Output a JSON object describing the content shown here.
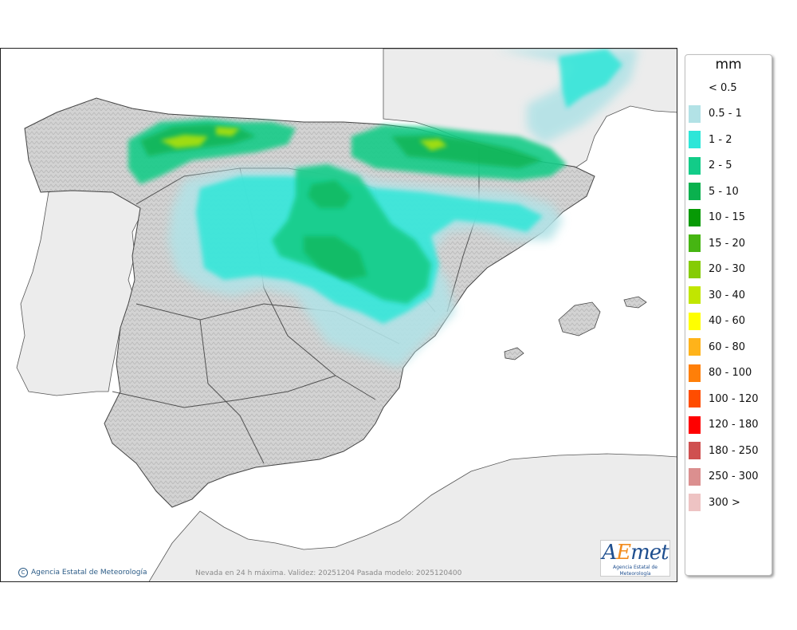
{
  "map": {
    "caption": "Nevada en 24 h máxima. Validez: 20251204 Pasada modelo: 2025120400",
    "credit": "Agencia Estatal de Meteorología",
    "logo_text": "AEmet",
    "logo_subtext": "Agencia Estatal de Meteorología"
  },
  "legend": {
    "title": "mm",
    "items": [
      {
        "label": "< 0.5",
        "color": "#ffffff"
      },
      {
        "label": "0.5 - 1",
        "color": "#b2e2e6"
      },
      {
        "label": "1 - 2",
        "color": "#2de6d8"
      },
      {
        "label": "2 - 5",
        "color": "#12cc88"
      },
      {
        "label": "5 - 10",
        "color": "#0ab14e"
      },
      {
        "label": "10 - 15",
        "color": "#079a05"
      },
      {
        "label": "15 - 20",
        "color": "#46b512"
      },
      {
        "label": "20 - 30",
        "color": "#85cc05"
      },
      {
        "label": "30 - 40",
        "color": "#c1e600"
      },
      {
        "label": "40 - 60",
        "color": "#ffff00"
      },
      {
        "label": "60 - 80",
        "color": "#ffb31a"
      },
      {
        "label": "80 - 100",
        "color": "#ff7f08"
      },
      {
        "label": "100 - 120",
        "color": "#ff4d00"
      },
      {
        "label": "120 - 180",
        "color": "#ff0000"
      },
      {
        "label": "180 - 250",
        "color": "#cf5050"
      },
      {
        "label": "250 - 300",
        "color": "#db8f8f"
      },
      {
        "label": "300 >",
        "color": "#eec3c3"
      }
    ]
  }
}
